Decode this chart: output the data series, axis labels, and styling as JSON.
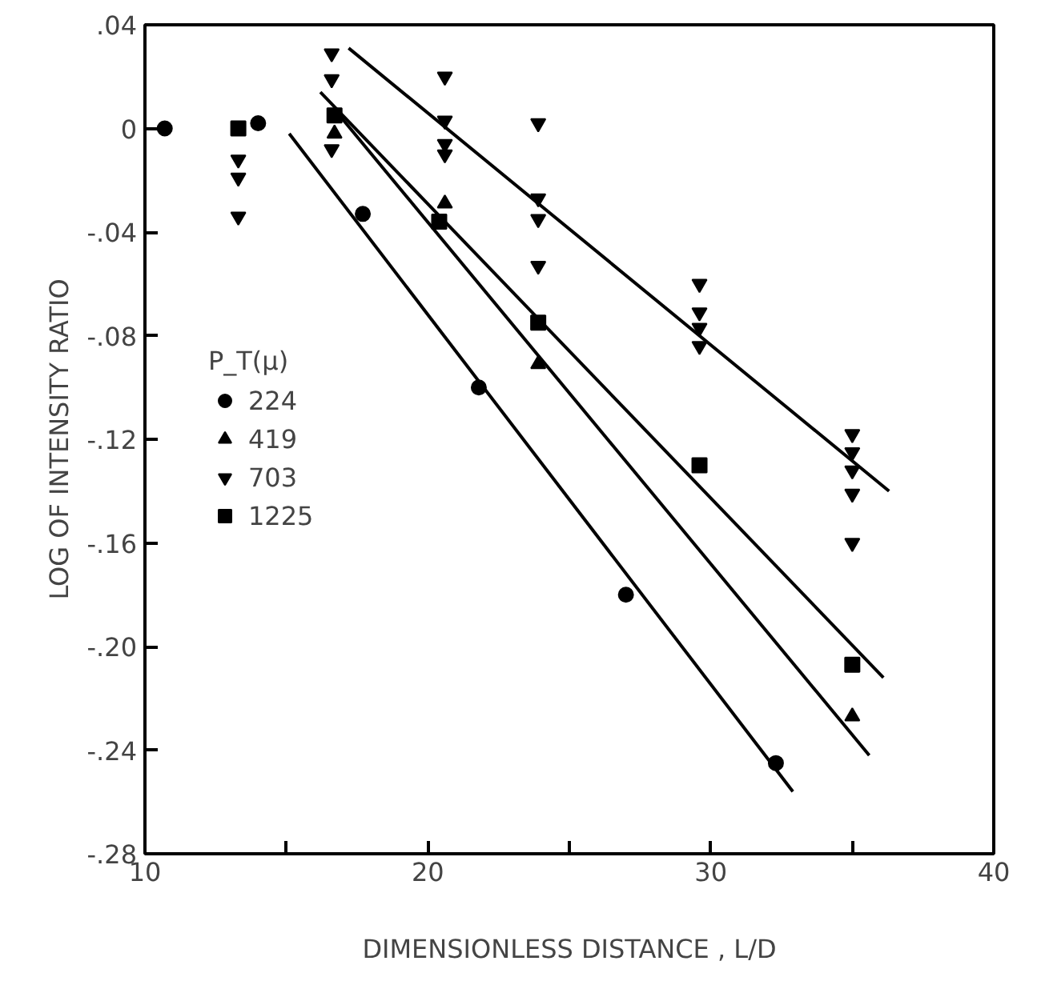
{
  "chart_data": {
    "type": "scatter",
    "xlabel": "DIMENSIONLESS DISTANCE , L/D",
    "ylabel": "LOG OF INTENSITY RATIO",
    "legend_title": "P_T(μ)",
    "legend": "left",
    "grid": false,
    "xlim": [
      10,
      40
    ],
    "ylim": [
      -0.28,
      0.04
    ],
    "xticks": [
      10,
      {
        "value": 15,
        "label": null
      },
      20,
      {
        "value": 25,
        "label": null
      },
      30,
      {
        "value": 35,
        "label": null
      },
      40
    ],
    "yticks": [
      {
        "value": 0.04,
        "label": ".04"
      },
      0,
      {
        "value": -0.04,
        "label": "-.04"
      },
      {
        "value": -0.08,
        "label": "-.08"
      },
      {
        "value": -0.12,
        "label": "-.12"
      },
      {
        "value": -0.16,
        "label": "-.16"
      },
      {
        "value": -0.2,
        "label": "-.20"
      },
      {
        "value": -0.24,
        "label": "-.24"
      },
      {
        "value": -0.28,
        "label": "-.28"
      }
    ],
    "series": [
      {
        "name": "224",
        "color": "#000000",
        "marker": "circle",
        "x": [
          10.7,
          14.0,
          17.7,
          21.8,
          27.0,
          32.3
        ],
        "values": [
          0,
          0.002,
          -0.033,
          -0.1,
          -0.18,
          -0.245
        ]
      },
      {
        "name": "419",
        "color": "#000000",
        "marker": "triangle",
        "x": [
          16.7,
          20.6,
          23.9,
          35.0
        ],
        "values": [
          -0.002,
          -0.029,
          -0.091,
          -0.227
        ]
      },
      {
        "name": "703",
        "color": "#000000",
        "marker": "triangle_down",
        "x": [
          13.3,
          13.3,
          13.3,
          16.6,
          16.6,
          16.6,
          20.6,
          20.6,
          20.6,
          20.6,
          23.9,
          23.9,
          23.9,
          23.9,
          29.6,
          29.6,
          29.6,
          29.6,
          35.0,
          35.0,
          35.0,
          35.0,
          35.0
        ],
        "values": [
          -0.012,
          -0.019,
          -0.034,
          0.029,
          0.019,
          -0.008,
          0.02,
          0.003,
          -0.006,
          -0.01,
          0.002,
          -0.027,
          -0.035,
          -0.053,
          -0.06,
          -0.071,
          -0.077,
          -0.084,
          -0.118,
          -0.125,
          -0.132,
          -0.141,
          -0.16
        ]
      },
      {
        "name": "1225",
        "color": "#000000",
        "marker": "square",
        "x": [
          13.3,
          16.7,
          20.4,
          23.9,
          29.6,
          35.0
        ],
        "values": [
          0,
          0.005,
          -0.036,
          -0.075,
          -0.13,
          -0.207
        ]
      },
      {
        "type": "line",
        "color": "#000000",
        "x": [
          15.1,
          32.9
        ],
        "values": [
          -0.002,
          -0.256
        ]
      },
      {
        "type": "line",
        "color": "#000000",
        "x": [
          16.8,
          35.6
        ],
        "values": [
          0.006,
          -0.242
        ]
      },
      {
        "type": "line",
        "color": "#000000",
        "x": [
          17.2,
          36.3
        ],
        "values": [
          0.031,
          -0.14
        ]
      },
      {
        "type": "line",
        "color": "#000000",
        "x": [
          16.2,
          36.1
        ],
        "values": [
          0.014,
          -0.212
        ]
      }
    ]
  }
}
